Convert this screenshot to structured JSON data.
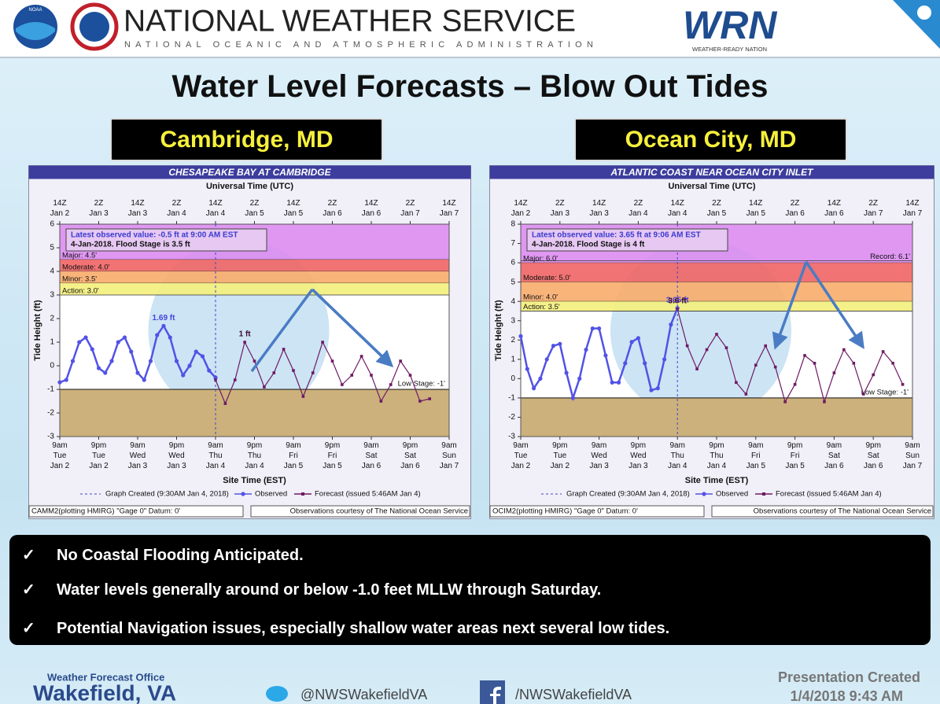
{
  "header": {
    "logo_text": "NOAA",
    "org": "NATIONAL WEATHER SERVICE",
    "org_sub": "NATIONAL OCEANIC AND ATMOSPHERIC ADMINISTRATION",
    "wrn": "WRN",
    "wrn_sub": "WEATHER-READY NATION"
  },
  "title": "Water Level Forecasts – Blow Out Tides",
  "locations": [
    "Cambridge, MD",
    "Ocean City, MD"
  ],
  "check": "✓",
  "bullets": [
    "No Coastal Flooding Anticipated.",
    "Water levels generally around or below -1.0 feet MLLW through Saturday.",
    "Potential Navigation issues, especially shallow water areas next several low tides."
  ],
  "footer": {
    "office_label": "Weather Forecast Office",
    "office": "Wakefield, VA",
    "twitter": "@NWSWakefieldVA",
    "facebook": "/NWSWakefieldVA",
    "created_label": "Presentation Created",
    "created": "1/4/2018 9:43 AM"
  },
  "chart_data": [
    {
      "type": "line",
      "title": "CHESAPEAKE BAY AT CAMBRIDGE",
      "x2_label": "Universal Time (UTC)",
      "x_label": "Site Time (EST)",
      "y_label": "Tide Height (ft)",
      "xlim": [
        0,
        120
      ],
      "ylim": [
        -3,
        6
      ],
      "yticks": [
        -3,
        -2,
        -1,
        0,
        1,
        2,
        3,
        4,
        5,
        6
      ],
      "xticks": [
        {
          "value": 0,
          "label": [
            "9am",
            "Tue",
            "Jan 2"
          ]
        },
        {
          "value": 12,
          "label": [
            "9pm",
            "Tue",
            "Jan 2"
          ]
        },
        {
          "value": 24,
          "label": [
            "9am",
            "Wed",
            "Jan 3"
          ]
        },
        {
          "value": 36,
          "label": [
            "9pm",
            "Wed",
            "Jan 3"
          ]
        },
        {
          "value": 48,
          "label": [
            "9am",
            "Thu",
            "Jan 4"
          ]
        },
        {
          "value": 60,
          "label": [
            "9pm",
            "Thu",
            "Jan 4"
          ]
        },
        {
          "value": 72,
          "label": [
            "9am",
            "Fri",
            "Jan 5"
          ]
        },
        {
          "value": 84,
          "label": [
            "9pm",
            "Fri",
            "Jan 5"
          ]
        },
        {
          "value": 96,
          "label": [
            "9am",
            "Sat",
            "Jan 6"
          ]
        },
        {
          "value": 108,
          "label": [
            "9pm",
            "Sat",
            "Jan 6"
          ]
        },
        {
          "value": 120,
          "label": [
            "9am",
            "Sun",
            "Jan 7"
          ]
        }
      ],
      "x2ticks": [
        {
          "value": 0,
          "label": [
            "14Z",
            "Jan 2"
          ]
        },
        {
          "value": 12,
          "label": [
            "2Z",
            "Jan 3"
          ]
        },
        {
          "value": 24,
          "label": [
            "14Z",
            "Jan 3"
          ]
        },
        {
          "value": 36,
          "label": [
            "2Z",
            "Jan 4"
          ]
        },
        {
          "value": 48,
          "label": [
            "14Z",
            "Jan 4"
          ]
        },
        {
          "value": 60,
          "label": [
            "2Z",
            "Jan 5"
          ]
        },
        {
          "value": 72,
          "label": [
            "14Z",
            "Jan 5"
          ]
        },
        {
          "value": 84,
          "label": [
            "2Z",
            "Jan 6"
          ]
        },
        {
          "value": 96,
          "label": [
            "14Z",
            "Jan 6"
          ]
        },
        {
          "value": 108,
          "label": [
            "2Z",
            "Jan 7"
          ]
        },
        {
          "value": 120,
          "label": [
            "14Z",
            "Jan 7"
          ]
        }
      ],
      "thresholds": [
        {
          "value": 4.5,
          "label": "Major: 4.5'",
          "color": "#dc8cf0"
        },
        {
          "value": 4.0,
          "label": "Moderate: 4.0'",
          "color": "#f06464"
        },
        {
          "value": 3.5,
          "label": "Minor: 3.5'",
          "color": "#f8ac6c"
        },
        {
          "value": 3.0,
          "label": "Action: 3.0'",
          "color": "#f4f07c"
        }
      ],
      "low_stage": {
        "value": -1,
        "label": "Low Stage: -1'",
        "color": "#ccb17c"
      },
      "info": [
        "Latest observed value: -0.5 ft at 9:00 AM EST",
        "4-Jan-2018.  Flood Stage is 3.5 ft"
      ],
      "created_label": "Graph Created (9:30AM Jan 4, 2018)",
      "series": [
        {
          "name": "Observed",
          "color": "#5252e6",
          "marker": "circle",
          "x": [
            0,
            2,
            4,
            6,
            8,
            10,
            12,
            14,
            16,
            18,
            20,
            22,
            24,
            26,
            28,
            30,
            32,
            34,
            36,
            38,
            40,
            42,
            44,
            46,
            48
          ],
          "values": [
            -0.7,
            -0.6,
            0.2,
            1.0,
            1.2,
            0.7,
            -0.1,
            -0.3,
            0.2,
            1.0,
            1.2,
            0.6,
            -0.3,
            -0.6,
            0.2,
            1.3,
            1.69,
            1.2,
            0.2,
            -0.4,
            0.0,
            0.6,
            0.4,
            -0.2,
            -0.5
          ],
          "value_labels": [
            null,
            null,
            null,
            null,
            null,
            null,
            null,
            null,
            null,
            null,
            null,
            null,
            null,
            null,
            null,
            null,
            "1.69 ft",
            null,
            null,
            null,
            null,
            null,
            null,
            null,
            null
          ]
        },
        {
          "name": "Forecast (issued 5:46AM Jan 4)",
          "color": "#6e1a64",
          "marker": "square",
          "x": [
            48,
            51,
            54,
            57,
            60,
            63,
            66,
            69,
            72,
            75,
            78,
            81,
            84,
            87,
            90,
            93,
            96,
            99,
            102,
            105,
            108,
            111,
            114
          ],
          "values": [
            -0.6,
            -1.6,
            -0.6,
            1.0,
            0.2,
            -0.9,
            -0.3,
            0.7,
            -0.2,
            -1.3,
            -0.3,
            1.0,
            0.2,
            -0.8,
            -0.4,
            0.4,
            -0.4,
            -1.5,
            -0.8,
            0.2,
            -0.4,
            -1.5,
            -1.4
          ],
          "value_labels": [
            null,
            null,
            null,
            "1 ft",
            null,
            null,
            null,
            null,
            null,
            null,
            null,
            null,
            null,
            null,
            null,
            null,
            null,
            null,
            null,
            null,
            null,
            null,
            null
          ]
        }
      ],
      "footer_left": "CAMM2(plotting HMIRG) \"Gage 0\" Datum: 0'",
      "footer_right": "Observations courtesy of The National Ocean Service"
    },
    {
      "type": "line",
      "title": "ATLANTIC COAST NEAR OCEAN CITY INLET",
      "x2_label": "Universal Time (UTC)",
      "x_label": "Site Time (EST)",
      "y_label": "Tide Height (ft)",
      "xlim": [
        0,
        120
      ],
      "ylim": [
        -3,
        8
      ],
      "yticks": [
        -3,
        -2,
        -1,
        0,
        1,
        2,
        3,
        4,
        5,
        6,
        7,
        8
      ],
      "xticks": [
        {
          "value": 0,
          "label": [
            "9am",
            "Tue",
            "Jan 2"
          ]
        },
        {
          "value": 12,
          "label": [
            "9pm",
            "Tue",
            "Jan 2"
          ]
        },
        {
          "value": 24,
          "label": [
            "9am",
            "Wed",
            "Jan 3"
          ]
        },
        {
          "value": 36,
          "label": [
            "9pm",
            "Wed",
            "Jan 3"
          ]
        },
        {
          "value": 48,
          "label": [
            "9am",
            "Thu",
            "Jan 4"
          ]
        },
        {
          "value": 60,
          "label": [
            "9pm",
            "Thu",
            "Jan 4"
          ]
        },
        {
          "value": 72,
          "label": [
            "9am",
            "Fri",
            "Jan 5"
          ]
        },
        {
          "value": 84,
          "label": [
            "9pm",
            "Fri",
            "Jan 5"
          ]
        },
        {
          "value": 96,
          "label": [
            "9am",
            "Sat",
            "Jan 6"
          ]
        },
        {
          "value": 108,
          "label": [
            "9pm",
            "Sat",
            "Jan 6"
          ]
        },
        {
          "value": 120,
          "label": [
            "9am",
            "Sun",
            "Jan 7"
          ]
        }
      ],
      "x2ticks": [
        {
          "value": 0,
          "label": [
            "14Z",
            "Jan 2"
          ]
        },
        {
          "value": 12,
          "label": [
            "2Z",
            "Jan 3"
          ]
        },
        {
          "value": 24,
          "label": [
            "14Z",
            "Jan 3"
          ]
        },
        {
          "value": 36,
          "label": [
            "2Z",
            "Jan 4"
          ]
        },
        {
          "value": 48,
          "label": [
            "14Z",
            "Jan 4"
          ]
        },
        {
          "value": 60,
          "label": [
            "2Z",
            "Jan 5"
          ]
        },
        {
          "value": 72,
          "label": [
            "14Z",
            "Jan 5"
          ]
        },
        {
          "value": 84,
          "label": [
            "2Z",
            "Jan 6"
          ]
        },
        {
          "value": 96,
          "label": [
            "14Z",
            "Jan 6"
          ]
        },
        {
          "value": 108,
          "label": [
            "2Z",
            "Jan 7"
          ]
        },
        {
          "value": 120,
          "label": [
            "14Z",
            "Jan 7"
          ]
        }
      ],
      "thresholds": [
        {
          "value": 6.0,
          "label": "Major: 6.0'",
          "color": "#dc8cf0"
        },
        {
          "value": 5.0,
          "label": "Moderate: 5.0'",
          "color": "#f06464"
        },
        {
          "value": 4.0,
          "label": "Minor: 4.0'",
          "color": "#f8ac6c"
        },
        {
          "value": 3.5,
          "label": "Action: 3.5'",
          "color": "#f4f07c"
        }
      ],
      "record": {
        "value": 6.1,
        "label": "Record: 6.1'"
      },
      "low_stage": {
        "value": -1,
        "label": "Low Stage: -1'",
        "color": "#ccb17c"
      },
      "info": [
        "Latest observed value: 3.65 ft at 9:06 AM EST",
        "4-Jan-2018.  Flood Stage is 4 ft"
      ],
      "created_label": "Graph Created (9:30AM Jan 4, 2018)",
      "series": [
        {
          "name": "Observed",
          "color": "#5252e6",
          "marker": "circle",
          "x": [
            0,
            2,
            4,
            6,
            8,
            10,
            12,
            14,
            16,
            18,
            20,
            22,
            24,
            26,
            28,
            30,
            32,
            34,
            36,
            38,
            40,
            42,
            44,
            46,
            48
          ],
          "values": [
            2.2,
            0.5,
            -0.5,
            0.0,
            1.0,
            1.7,
            1.8,
            0.3,
            -1.0,
            0.0,
            1.5,
            2.6,
            2.6,
            1.2,
            -0.2,
            -0.2,
            0.8,
            1.9,
            2.1,
            0.8,
            -0.6,
            -0.5,
            1.0,
            2.8,
            3.65
          ],
          "value_labels": [
            null,
            null,
            null,
            null,
            null,
            null,
            null,
            null,
            null,
            null,
            null,
            null,
            null,
            null,
            null,
            null,
            null,
            null,
            null,
            null,
            null,
            null,
            null,
            null,
            "3.65 ft"
          ]
        },
        {
          "name": "Forecast (issued 5:46AM Jan 4)",
          "color": "#6e1a64",
          "marker": "square",
          "x": [
            48,
            51,
            54,
            57,
            60,
            63,
            66,
            69,
            72,
            75,
            78,
            81,
            84,
            87,
            90,
            93,
            96,
            99,
            102,
            105,
            108,
            111,
            114,
            117
          ],
          "values": [
            3.6,
            1.7,
            0.5,
            1.5,
            2.3,
            1.6,
            -0.2,
            -0.8,
            0.7,
            1.7,
            0.6,
            -1.2,
            -0.3,
            1.2,
            0.8,
            -1.2,
            0.3,
            1.5,
            0.8,
            -0.8,
            0.2,
            1.4,
            0.8,
            -0.3
          ],
          "value_labels": [
            "3.6 ft",
            null,
            null,
            null,
            null,
            null,
            null,
            null,
            null,
            null,
            null,
            null,
            null,
            null,
            null,
            null,
            null,
            null,
            null,
            null,
            null,
            null,
            null,
            null
          ]
        }
      ],
      "footer_left": "OCIM2(plotting HMIRG) \"Gage 0\" Datum: 0'",
      "footer_right": "Observations courtesy of The National Ocean Service"
    }
  ]
}
